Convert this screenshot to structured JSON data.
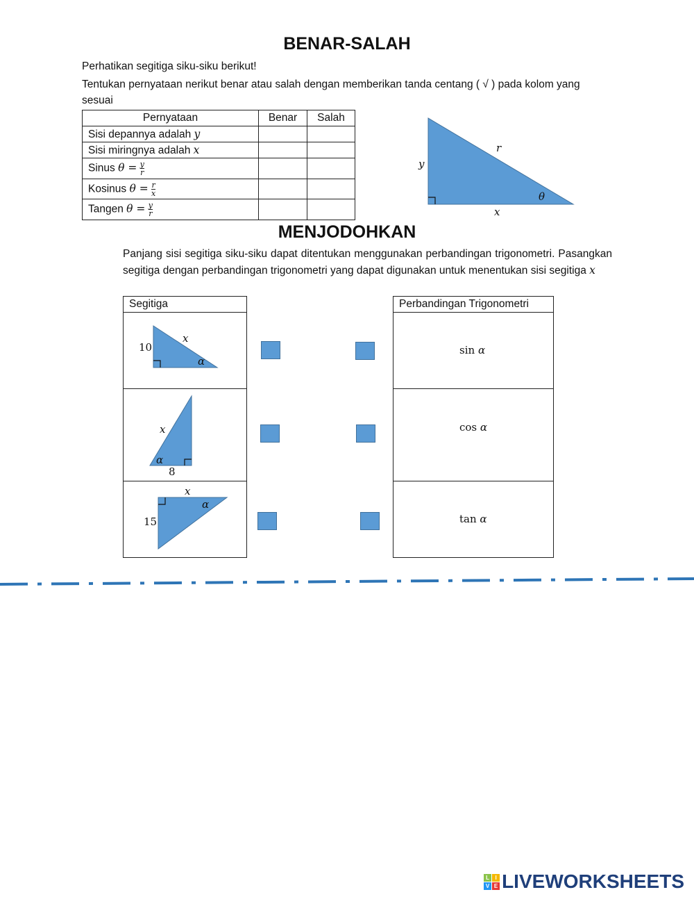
{
  "benar_salah": {
    "title": "BENAR-SALAH",
    "intro1": "Perhatikan segitiga siku-siku berikut!",
    "intro2": "Tentukan pernyataan nerikut benar atau salah dengan memberikan tanda centang ( √ ) pada kolom yang",
    "intro3": "sesuai",
    "headers": [
      "Pernyataan",
      "Benar",
      "Salah"
    ],
    "rows": [
      {
        "text": "Sisi depannya adalah ",
        "var": "y"
      },
      {
        "text": "Sisi miringnya adalah ",
        "var": "x"
      },
      {
        "text": "Sinus ",
        "var": "θ =",
        "num": "y",
        "den": "r"
      },
      {
        "text": "Kosinus ",
        "var": "θ =",
        "num": "r",
        "den": "x"
      },
      {
        "text": "Tangen ",
        "var": "θ =",
        "num": "y",
        "den": "r"
      }
    ],
    "triangle_labels": {
      "r": "r",
      "y": "y",
      "theta": "θ",
      "x": "x"
    }
  },
  "menjodohkan": {
    "title": "MENJODOHKAN",
    "para": "Panjang sisi segitiga siku-siku dapat ditentukan menggunakan perbandingan trigonometri. Pasangkan segitiga dengan perbandingan trigonometri yang dapat digunakan untuk menentukan sisi segitiga ",
    "para_var": "x",
    "left_header": "Segitiga",
    "right_header": "Perbandingan Trigonometri",
    "triangles": [
      {
        "side": "10",
        "hyp": "x",
        "angle": "α"
      },
      {
        "side": "8",
        "hyp": "x",
        "angle": "α"
      },
      {
        "side": "15",
        "hyp": "x",
        "angle": "α"
      }
    ],
    "ratios": [
      {
        "fn": "sin ",
        "arg": "α"
      },
      {
        "fn": "cos ",
        "arg": "α"
      },
      {
        "fn": "tan ",
        "arg": "α"
      }
    ]
  },
  "colors": {
    "shape_fill": "#5b9bd5",
    "shape_stroke": "#41719c",
    "dash_line": "#2e75b6",
    "logo": "#1f3f7a"
  },
  "logo": {
    "text": "LIVEWORKSHEETS",
    "tiles": [
      "L",
      "I",
      "V",
      "E"
    ]
  }
}
